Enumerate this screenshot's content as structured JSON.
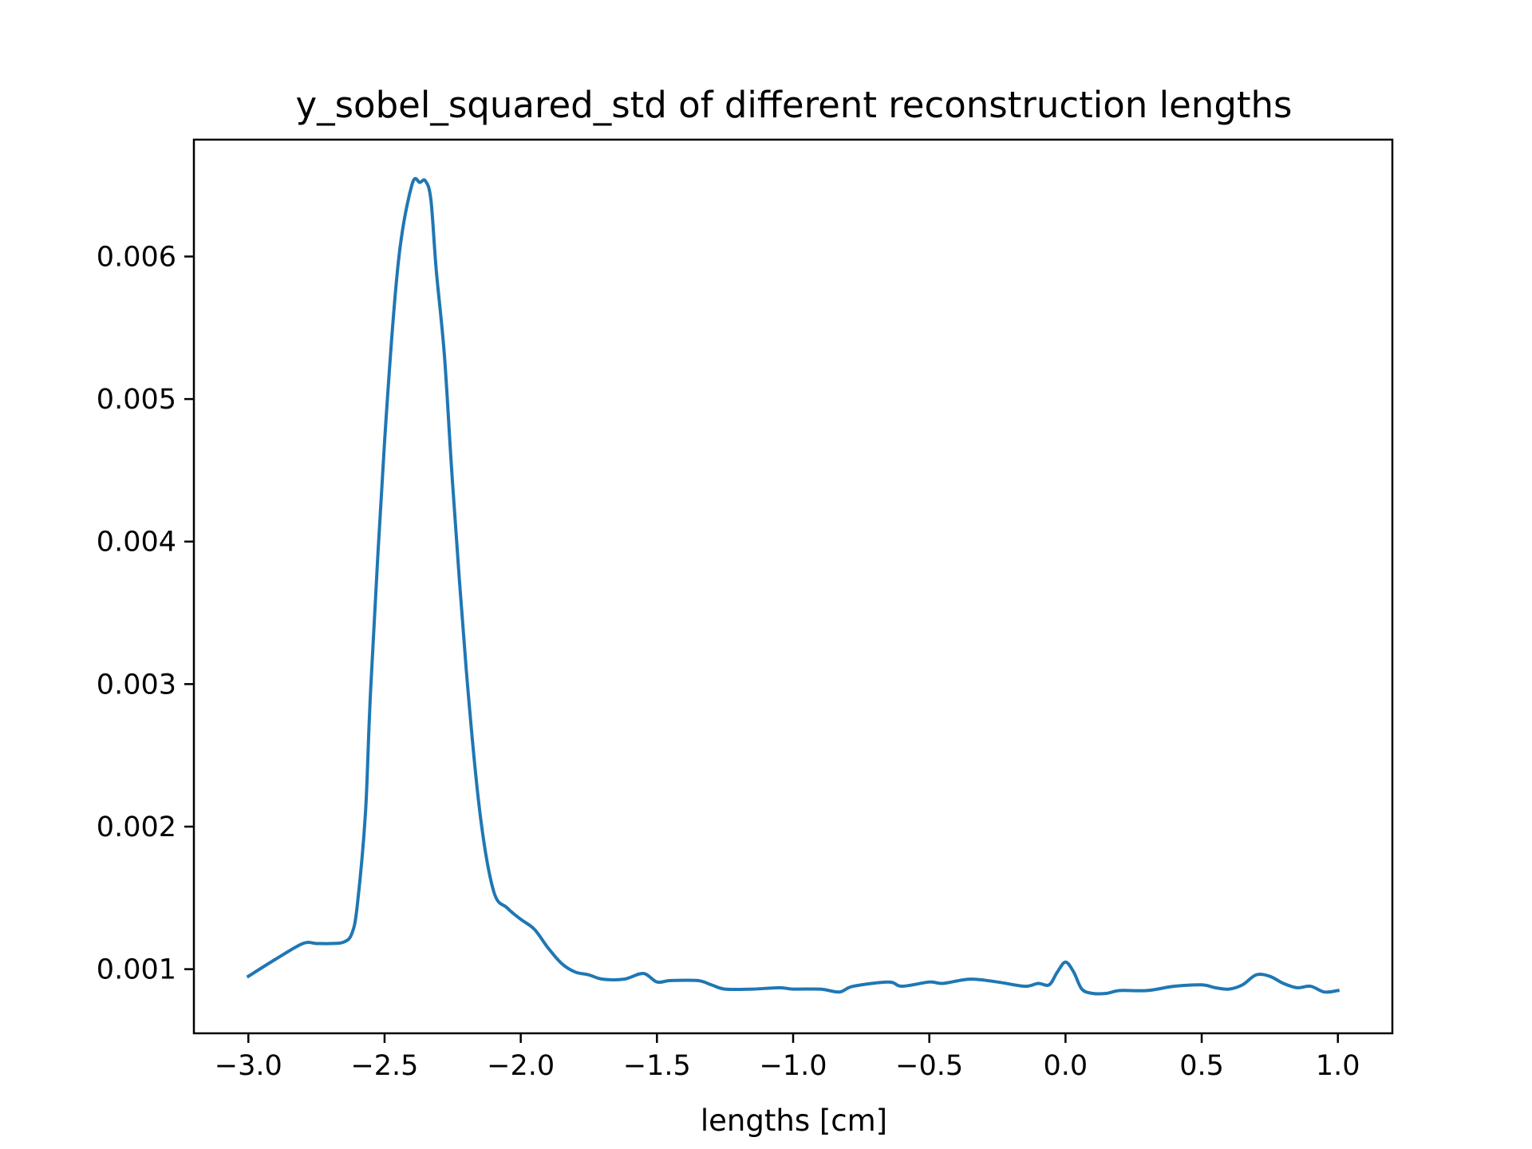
{
  "chart_data": {
    "type": "line",
    "title": "y_sobel_squared_std of different reconstruction lengths",
    "xlabel": "lengths [cm]",
    "ylabel": "",
    "xlim": [
      -3.2,
      1.2
    ],
    "ylim": [
      0.00055,
      0.00682
    ],
    "grid": false,
    "x_ticks": [
      -3.0,
      -2.5,
      -2.0,
      -1.5,
      -1.0,
      -0.5,
      0.0,
      0.5,
      1.0
    ],
    "x_tick_labels": [
      "−3.0",
      "−2.5",
      "−2.0",
      "−1.5",
      "−1.0",
      "−0.5",
      "0.0",
      "0.5",
      "1.0"
    ],
    "y_ticks": [
      0.001,
      0.002,
      0.003,
      0.004,
      0.005,
      0.006
    ],
    "y_tick_labels": [
      "0.001",
      "0.002",
      "0.003",
      "0.004",
      "0.005",
      "0.006"
    ],
    "series": [
      {
        "color": "#1f77b4",
        "x": [
          -3.0,
          -2.9,
          -2.8,
          -2.75,
          -2.7,
          -2.65,
          -2.62,
          -2.6,
          -2.57,
          -2.55,
          -2.5,
          -2.45,
          -2.4,
          -2.37,
          -2.35,
          -2.33,
          -2.31,
          -2.28,
          -2.25,
          -2.2,
          -2.15,
          -2.1,
          -2.05,
          -2.0,
          -1.95,
          -1.9,
          -1.85,
          -1.8,
          -1.75,
          -1.7,
          -1.62,
          -1.55,
          -1.5,
          -1.45,
          -1.35,
          -1.3,
          -1.25,
          -1.15,
          -1.05,
          -1.0,
          -0.9,
          -0.83,
          -0.78,
          -0.65,
          -0.6,
          -0.5,
          -0.45,
          -0.35,
          -0.25,
          -0.15,
          -0.1,
          -0.06,
          -0.03,
          0.0,
          0.03,
          0.06,
          0.1,
          0.15,
          0.2,
          0.3,
          0.4,
          0.5,
          0.55,
          0.6,
          0.65,
          0.7,
          0.75,
          0.8,
          0.85,
          0.9,
          0.95,
          1.0
        ],
        "y": [
          0.00095,
          0.00107,
          0.00118,
          0.00118,
          0.00118,
          0.00119,
          0.00125,
          0.00145,
          0.0021,
          0.003,
          0.0047,
          0.00595,
          0.0065,
          0.00652,
          0.00653,
          0.0064,
          0.0059,
          0.0053,
          0.0044,
          0.0031,
          0.0021,
          0.00155,
          0.00143,
          0.00135,
          0.00128,
          0.00115,
          0.00104,
          0.00098,
          0.00096,
          0.00093,
          0.00093,
          0.00097,
          0.00091,
          0.00092,
          0.00092,
          0.00089,
          0.00086,
          0.00086,
          0.00087,
          0.00086,
          0.00086,
          0.00084,
          0.00088,
          0.00091,
          0.00088,
          0.00091,
          0.0009,
          0.00093,
          0.00091,
          0.00088,
          0.0009,
          0.00089,
          0.00098,
          0.00105,
          0.00098,
          0.00086,
          0.00083,
          0.00083,
          0.00085,
          0.00085,
          0.00088,
          0.00089,
          0.00087,
          0.00086,
          0.00089,
          0.00096,
          0.00095,
          0.0009,
          0.00087,
          0.00088,
          0.00084,
          0.00085
        ]
      }
    ]
  }
}
